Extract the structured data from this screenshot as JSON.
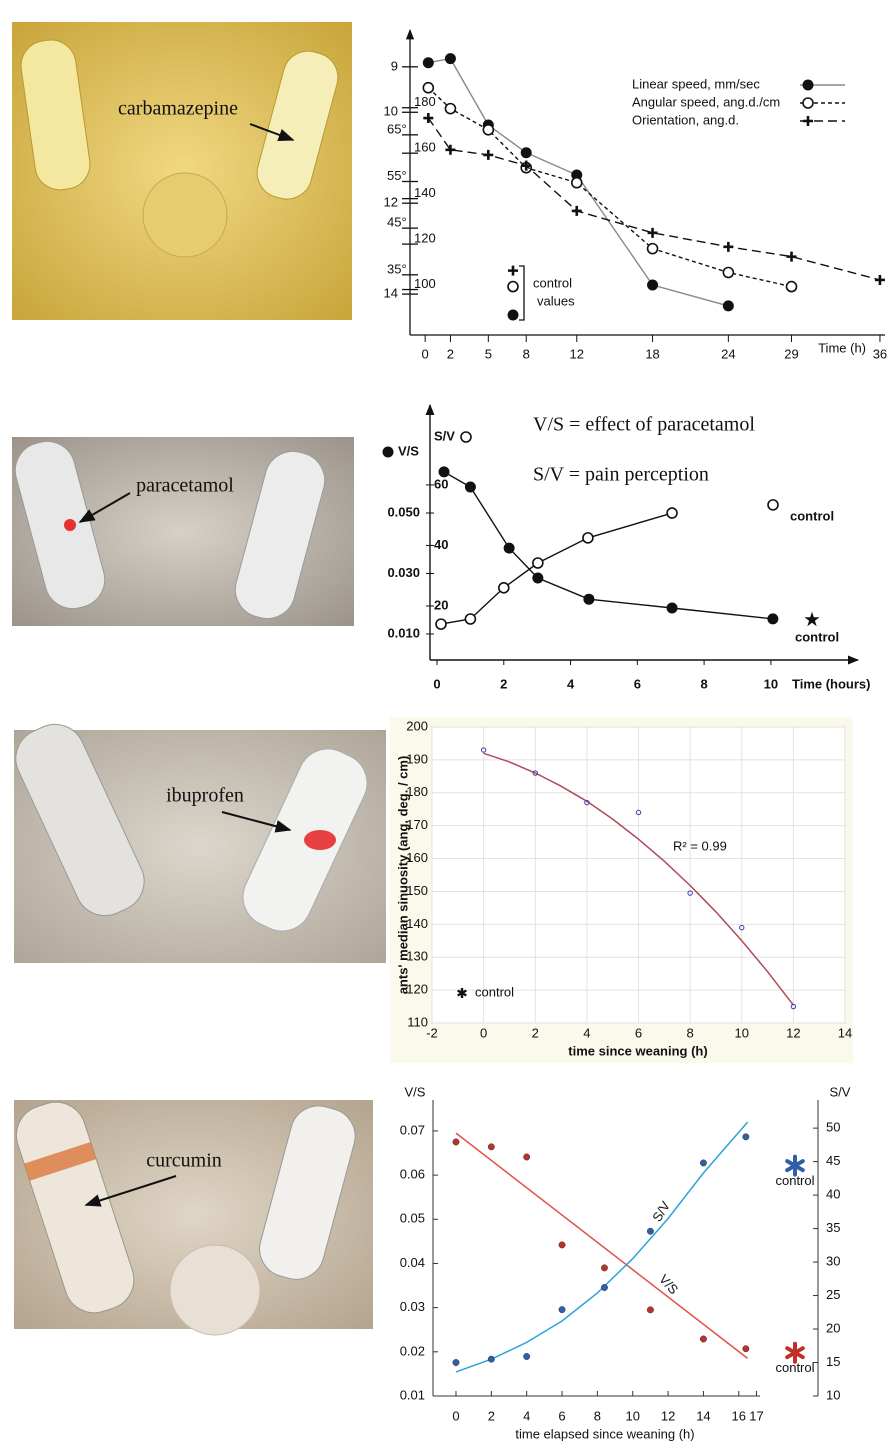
{
  "chart_data": [
    {
      "type": "line",
      "photo_label": "carbamazepine",
      "xlabel": "Time (h)",
      "xlim": [
        -1.2,
        36.4
      ],
      "xticks": [
        0,
        2,
        5,
        8,
        12,
        18,
        24,
        29,
        36
      ],
      "ylim": [
        14.9,
        8.3
      ],
      "yticks": [
        9,
        10,
        12,
        14
      ],
      "y2lim": [
        80,
        212
      ],
      "y2ticks": [
        100,
        120,
        140,
        160,
        180
      ],
      "y3lim": [
        22.1,
        86.4
      ],
      "y3ticks": [
        {
          "value": 35,
          "label": "35°"
        },
        {
          "value": 45,
          "label": "45°"
        },
        {
          "value": 55,
          "label": "55°"
        },
        {
          "value": 65,
          "label": "65°"
        }
      ],
      "control_label": [
        "control",
        "values"
      ],
      "series": [
        {
          "name": "Linear speed, mm/sec",
          "axis": "y",
          "marker": "filled",
          "dash": "none",
          "color": "#888888",
          "x": [
            0.25,
            2,
            5,
            8,
            12,
            18,
            24
          ],
          "values": [
            8.91,
            8.82,
            10.28,
            10.89,
            11.38,
            13.8,
            14.26
          ],
          "control": 14.46
        },
        {
          "name": "Angular speed, ang.d./cm",
          "axis": "y2",
          "marker": "open",
          "dash": "short",
          "color": "#111111",
          "x": [
            0.25,
            2,
            5,
            8,
            12,
            18,
            24,
            29
          ],
          "values": [
            188.8,
            179.6,
            170.3,
            153.6,
            147.0,
            118.0,
            107.5,
            101.3
          ],
          "control": 101.3
        },
        {
          "name": "Orientation, ang.d.",
          "axis": "y3",
          "marker": "plus",
          "dash": "long",
          "color": "#111111",
          "x": [
            0.25,
            2,
            5,
            8,
            12,
            18,
            24,
            29,
            36
          ],
          "values": [
            68.6,
            61.8,
            60.7,
            58.4,
            48.7,
            44.0,
            41.0,
            38.9,
            33.9
          ],
          "control": 35.9
        }
      ]
    },
    {
      "type": "line",
      "photo_label": "paracetamol",
      "xlabel": "Time (hours)",
      "xlim": [
        -0.21,
        12.37
      ],
      "xticks": [
        0,
        2,
        4,
        6,
        8,
        10
      ],
      "ylim": [
        0.0014,
        0.0857
      ],
      "yticks": [
        {
          "value": 0.01,
          "label": "0.010"
        },
        {
          "value": 0.03,
          "label": "0.030"
        },
        {
          "value": 0.05,
          "label": "0.050"
        }
      ],
      "y2lim": [
        2.15,
        86.4
      ],
      "y2ticks": [
        20,
        40,
        60
      ],
      "annotations": [
        "V/S = effect of paracetamol",
        "S/V = pain perception"
      ],
      "series": [
        {
          "name": "V/S",
          "axis": "y",
          "marker": "filled",
          "color": "#111111",
          "x": [
            0.21,
            1.0,
            2.16,
            3.02,
            4.55,
            7.04,
            10.06
          ],
          "values": [
            0.0636,
            0.0586,
            0.0384,
            0.0285,
            0.0215,
            0.0186,
            0.015
          ],
          "control": 0.0147,
          "control_label": "control"
        },
        {
          "name": "S/V",
          "axis": "y2",
          "marker": "open",
          "color": "#111111",
          "x": [
            0.12,
            1.0,
            2.0,
            3.02,
            4.52,
            7.04
          ],
          "values": [
            14.0,
            15.7,
            26.0,
            34.2,
            42.5,
            50.7
          ],
          "control": 53.4,
          "control_label": "control"
        }
      ]
    },
    {
      "type": "scatter",
      "photo_label": "ibuprofen",
      "xlabel": "time since weaning (h)",
      "ylabel": "ants' median sinuosity (ang. deg. / cm)",
      "xlim": [
        -2,
        14
      ],
      "xticks": [
        -2,
        0,
        2,
        4,
        6,
        8,
        10,
        12,
        14
      ],
      "ylim": [
        110,
        200
      ],
      "yticks": [
        110,
        120,
        130,
        140,
        150,
        160,
        170,
        180,
        190,
        200
      ],
      "grid": true,
      "x": [
        0,
        2,
        4,
        6,
        8,
        10,
        12
      ],
      "values": [
        193,
        186,
        177,
        174,
        149.5,
        139,
        115
      ],
      "color": "#3a3ab0",
      "fit": {
        "x": [
          0,
          1,
          2,
          3,
          4,
          5,
          6,
          7,
          8,
          9,
          10,
          11,
          12
        ],
        "values": [
          192,
          189.4,
          186.0,
          182.0,
          177.4,
          172.0,
          165.9,
          159.2,
          151.8,
          143.8,
          135.0,
          125.6,
          115.4
        ],
        "color": "#b04a5a"
      },
      "annotation": "R² = 0.99",
      "control_label": "control"
    },
    {
      "type": "scatter",
      "photo_label": "curcumin",
      "xlabel": "time elapsed since weaning (h)",
      "xlim": [
        -1.3,
        17.2
      ],
      "xticks": [
        0,
        2,
        4,
        6,
        8,
        10,
        12,
        14,
        16,
        17
      ],
      "ylim": [
        0.01,
        0.077
      ],
      "yticks": [
        0.01,
        0.02,
        0.03,
        0.04,
        0.05,
        0.06,
        0.07
      ],
      "y2lim": [
        10,
        54.2
      ],
      "y2ticks": [
        10,
        15,
        20,
        25,
        30,
        35,
        40,
        45,
        50
      ],
      "x": [
        0,
        2,
        4,
        6,
        8.4,
        11,
        14,
        16.4
      ],
      "series": [
        {
          "name": "V/S",
          "axis": "y",
          "color": "#c0302a",
          "line_color": "#e0504a",
          "values": [
            0.0675,
            0.0664,
            0.0641,
            0.0442,
            0.039,
            0.0295,
            0.0229,
            0.0207
          ],
          "fit": {
            "x": [
              0,
              16.5
            ],
            "values": [
              0.0695,
              0.0185
            ]
          },
          "control": 0.0198,
          "control_label": "control"
        },
        {
          "name": "S/V",
          "axis": "y2",
          "color": "#2f5fa8",
          "line_color": "#2ba3d9",
          "values": [
            15.0,
            15.5,
            15.9,
            22.9,
            26.2,
            34.6,
            44.8,
            48.7
          ],
          "fit": {
            "x": [
              0,
              2,
              4,
              6,
              8,
              10,
              12,
              14,
              16.5
            ],
            "values": [
              13.6,
              15.5,
              18.0,
              21.2,
              25.4,
              30.5,
              36.5,
              43.3,
              50.9
            ]
          },
          "control": 44.4,
          "control_label": "control"
        }
      ]
    }
  ]
}
